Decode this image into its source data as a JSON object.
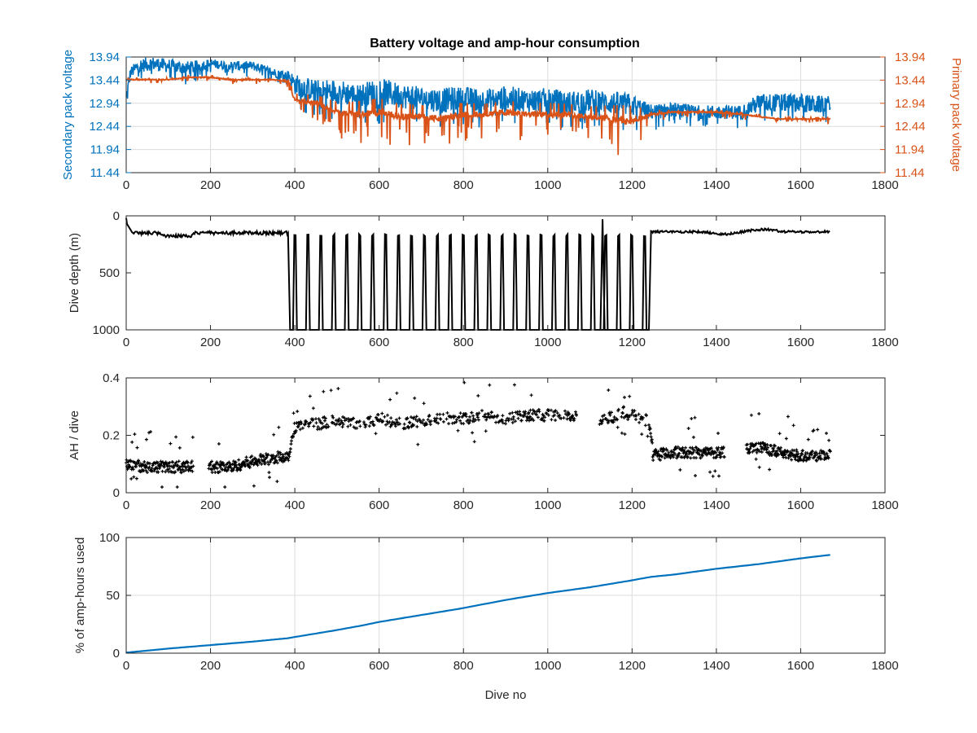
{
  "colors": {
    "secondary": "#0072BD",
    "primary": "#D95319",
    "black": "#000000",
    "grid": "#dcdcdc"
  },
  "chart_data": [
    {
      "type": "line",
      "title": "Battery voltage and amp-hour consumption",
      "xlabel": "",
      "ylabel": "Secondary pack voltage",
      "ylabel_right": "Primary pack voltage",
      "xlim": [
        0,
        1800
      ],
      "ylim": [
        11.44,
        13.94
      ],
      "xticks": [
        "0",
        "200",
        "400",
        "600",
        "800",
        "1000",
        "1200",
        "1400",
        "1600",
        "1800"
      ],
      "yticks": [
        "11.44",
        "11.94",
        "12.44",
        "12.94",
        "13.44",
        "13.94"
      ],
      "yticks_right": [
        "11.44",
        "11.94",
        "12.44",
        "12.94",
        "13.44",
        "13.94"
      ],
      "grid": true,
      "series": [
        {
          "axis": "left",
          "color": "#0072BD",
          "x": [
            0,
            10,
            30,
            60,
            100,
            150,
            200,
            250,
            300,
            350,
            385,
            400,
            450,
            500,
            550,
            600,
            650,
            700,
            750,
            800,
            850,
            900,
            950,
            1000,
            1050,
            1100,
            1150,
            1200,
            1240,
            1300,
            1350,
            1400,
            1460,
            1500,
            1550,
            1600,
            1640,
            1670
          ],
          "y": [
            13.0,
            13.6,
            13.75,
            13.8,
            13.75,
            13.7,
            13.8,
            13.75,
            13.75,
            13.6,
            13.55,
            13.35,
            13.2,
            13.2,
            13.1,
            13.2,
            13.1,
            13.05,
            13.0,
            13.05,
            13.0,
            13.05,
            13.0,
            13.0,
            12.95,
            13.0,
            12.95,
            12.9,
            12.75,
            12.8,
            12.75,
            12.75,
            12.75,
            12.95,
            12.95,
            12.95,
            12.9,
            12.95
          ],
          "noise": [
            0.5,
            0.25,
            0.3,
            0.3,
            0.3,
            0.3,
            0.2,
            0.2,
            0.2,
            0.2,
            0.2,
            0.45,
            0.5,
            0.55,
            0.5,
            0.6,
            0.55,
            0.5,
            0.55,
            0.5,
            0.5,
            0.55,
            0.5,
            0.55,
            0.5,
            0.5,
            0.5,
            0.5,
            0.35,
            0.3,
            0.3,
            0.3,
            0.3,
            0.4,
            0.4,
            0.4,
            0.4,
            0.3
          ]
        },
        {
          "axis": "right",
          "color": "#D95319",
          "x": [
            0,
            10,
            50,
            100,
            150,
            200,
            250,
            300,
            350,
            385,
            400,
            450,
            500,
            550,
            600,
            650,
            700,
            750,
            800,
            850,
            900,
            950,
            1000,
            1050,
            1100,
            1150,
            1190,
            1250,
            1300,
            1350,
            1400,
            1460,
            1500,
            1550,
            1600,
            1670
          ],
          "y": [
            13.45,
            13.45,
            13.45,
            13.45,
            13.5,
            13.5,
            13.45,
            13.45,
            13.45,
            13.4,
            13.0,
            12.95,
            12.75,
            12.7,
            12.75,
            12.65,
            12.65,
            12.6,
            12.7,
            12.7,
            12.75,
            12.7,
            12.7,
            12.7,
            12.65,
            12.6,
            12.55,
            12.7,
            12.75,
            12.75,
            12.75,
            12.7,
            12.65,
            12.6,
            12.6,
            12.6
          ],
          "noise": [
            0.25,
            0.1,
            0.08,
            0.08,
            0.08,
            0.08,
            0.08,
            0.08,
            0.08,
            0.1,
            0.3,
            0.35,
            0.45,
            0.55,
            0.6,
            0.55,
            0.5,
            0.6,
            0.5,
            0.45,
            0.5,
            0.5,
            0.5,
            0.45,
            0.45,
            0.6,
            0.7,
            0.2,
            0.1,
            0.1,
            0.1,
            0.1,
            0.1,
            0.05,
            0.05,
            0.1
          ]
        }
      ]
    },
    {
      "type": "line",
      "title": "",
      "xlabel": "",
      "ylabel": "Dive depth (m)",
      "xlim": [
        0,
        1800
      ],
      "ylim": [
        1000,
        0
      ],
      "y_reversed": true,
      "xticks": [
        "0",
        "200",
        "400",
        "600",
        "800",
        "1000",
        "1200",
        "1400",
        "1600",
        "1800"
      ],
      "yticks": [
        "0",
        "500",
        "1000"
      ],
      "grid": false,
      "series": [
        {
          "color": "#000000",
          "shallow_depth": 150,
          "deep_depth": 1000,
          "shallow_ranges": [
            [
              0,
              385
            ],
            [
              1245,
              1670
            ]
          ],
          "deep_range": [
            385,
            1245
          ],
          "deep_cycles": 28
        }
      ]
    },
    {
      "type": "scatter",
      "title": "",
      "xlabel": "",
      "ylabel": "AH / dive",
      "xlim": [
        0,
        1800
      ],
      "ylim": [
        0,
        0.4
      ],
      "xticks": [
        "0",
        "200",
        "400",
        "600",
        "800",
        "1000",
        "1200",
        "1400",
        "1600",
        "1800"
      ],
      "yticks": [
        "0",
        "0.2",
        "0.4"
      ],
      "grid": false,
      "series": [
        {
          "color": "#000000",
          "x": [
            0,
            50,
            100,
            150,
            200,
            250,
            300,
            350,
            385,
            400,
            450,
            500,
            550,
            600,
            650,
            700,
            750,
            800,
            850,
            900,
            950,
            1000,
            1050,
            1130,
            1180,
            1240,
            1250,
            1300,
            1350,
            1400,
            1450,
            1500,
            1550,
            1600,
            1650,
            1670
          ],
          "y": [
            0.1,
            0.09,
            0.09,
            0.09,
            0.09,
            0.09,
            0.11,
            0.12,
            0.13,
            0.23,
            0.24,
            0.25,
            0.24,
            0.26,
            0.24,
            0.25,
            0.26,
            0.26,
            0.27,
            0.26,
            0.27,
            0.27,
            0.27,
            0.25,
            0.28,
            0.25,
            0.13,
            0.14,
            0.14,
            0.14,
            0.15,
            0.16,
            0.14,
            0.13,
            0.13,
            0.13
          ],
          "spread": 0.02,
          "gaps": [
            [
              160,
              195
            ],
            [
              1070,
              1120
            ],
            [
              1420,
              1470
            ]
          ]
        }
      ]
    },
    {
      "type": "line",
      "title": "",
      "xlabel": "Dive no",
      "ylabel": "% of amp-hours used",
      "xlim": [
        0,
        1800
      ],
      "ylim": [
        0,
        100
      ],
      "xticks": [
        "0",
        "200",
        "400",
        "600",
        "800",
        "1000",
        "1200",
        "1400",
        "1600",
        "1800"
      ],
      "yticks": [
        "0",
        "50",
        "100"
      ],
      "grid": true,
      "series": [
        {
          "color": "#0072BD",
          "x": [
            0,
            100,
            200,
            300,
            385,
            400,
            500,
            560,
            600,
            700,
            800,
            900,
            1000,
            1100,
            1200,
            1245,
            1300,
            1400,
            1500,
            1600,
            1670
          ],
          "y": [
            0.5,
            4,
            7,
            10,
            13,
            14,
            20,
            24,
            27,
            33,
            39,
            46,
            52,
            57,
            63,
            66,
            68,
            73,
            77,
            82,
            85
          ]
        }
      ]
    }
  ]
}
